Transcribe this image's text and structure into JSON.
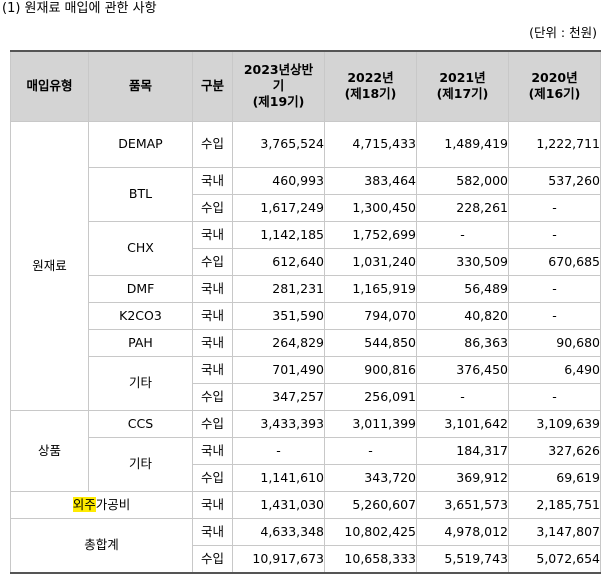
{
  "heading": {
    "text": "(1) 원재료 매입에 관한 사항"
  },
  "unit": {
    "text": "(단위 : 천원)"
  },
  "header": {
    "purchase_type": "매입유형",
    "item": "품목",
    "division": "구분",
    "col_2023_line1": "2023년상반",
    "col_2023_line2": "기",
    "col_2023_line3": "(제19기)",
    "col_2022_line1": "2022년",
    "col_2022_line2": "(제18기)",
    "col_2021_line1": "2021년",
    "col_2021_line2": "(제17기)",
    "col_2020_line1": "2020년",
    "col_2020_line2": "(제16기)"
  },
  "groups": {
    "raw_material": "원재료",
    "goods": "상품",
    "outsourcing_hl": "외주",
    "outsourcing_rest": "가공비",
    "total": "총합계"
  },
  "items": {
    "demap": "DEMAP",
    "btl": "BTL",
    "chx": "CHX",
    "dmf": "DMF",
    "k2co3": "K2CO3",
    "pah": "PAH",
    "other_raw": "기타",
    "ccs": "CCS",
    "other_goods": "기타"
  },
  "rows": {
    "demap": {
      "div": "수입",
      "v": [
        "3,765,524",
        "4,715,433",
        "1,489,419",
        "1,222,711"
      ]
    },
    "btl_dom": {
      "div": "국내",
      "v": [
        "460,993",
        "383,464",
        "582,000",
        "537,260"
      ]
    },
    "btl_imp": {
      "div": "수입",
      "v": [
        "1,617,249",
        "1,300,450",
        "228,261",
        "-"
      ]
    },
    "chx_dom": {
      "div": "국내",
      "v": [
        "1,142,185",
        "1,752,699",
        "-",
        "-"
      ]
    },
    "chx_imp": {
      "div": "수입",
      "v": [
        "612,640",
        "1,031,240",
        "330,509",
        "670,685"
      ]
    },
    "dmf": {
      "div": "국내",
      "v": [
        "281,231",
        "1,165,919",
        "56,489",
        "-"
      ]
    },
    "k2co3": {
      "div": "국내",
      "v": [
        "351,590",
        "794,070",
        "40,820",
        "-"
      ]
    },
    "pah": {
      "div": "국내",
      "v": [
        "264,829",
        "544,850",
        "86,363",
        "90,680"
      ]
    },
    "other_raw_dom": {
      "div": "국내",
      "v": [
        "701,490",
        "900,816",
        "376,450",
        "6,490"
      ]
    },
    "other_raw_imp": {
      "div": "수입",
      "v": [
        "347,257",
        "256,091",
        "-",
        "-"
      ]
    },
    "ccs": {
      "div": "수입",
      "v": [
        "3,433,393",
        "3,011,399",
        "3,101,642",
        "3,109,639"
      ]
    },
    "other_goods_dom": {
      "div": "국내",
      "v": [
        "-",
        "-",
        "184,317",
        "327,626"
      ]
    },
    "other_goods_imp": {
      "div": "수입",
      "v": [
        "1,141,610",
        "343,720",
        "369,912",
        "69,619"
      ]
    },
    "outsourcing": {
      "div": "국내",
      "v": [
        "1,431,030",
        "5,260,607",
        "3,651,573",
        "2,185,751"
      ]
    },
    "total_dom": {
      "div": "국내",
      "v": [
        "4,633,348",
        "10,802,425",
        "4,978,012",
        "3,147,807"
      ]
    },
    "total_imp": {
      "div": "수입",
      "v": [
        "10,917,673",
        "10,658,333",
        "5,519,743",
        "5,072,654"
      ]
    }
  },
  "colors": {
    "highlight": "#ffeb00",
    "header_bg": "#d4d4d4",
    "grid": "#c8c8c8"
  }
}
